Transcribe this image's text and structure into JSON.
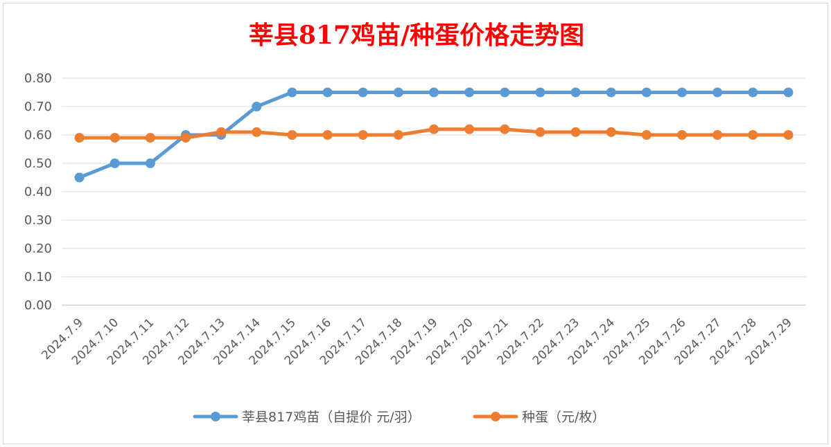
{
  "chart_data": {
    "type": "line",
    "title": "莘县817鸡苗/种蛋价格走势图",
    "title_color": "#ff0000",
    "categories": [
      "2024.7.9",
      "2024.7.10",
      "2024.7.11",
      "2024.7.12",
      "2024.7.13",
      "2024.7.14",
      "2024.7.15",
      "2024.7.16",
      "2024.7.17",
      "2024.7.18",
      "2024.7.19",
      "2024.7.20",
      "2024.7.21",
      "2024.7.22",
      "2024.7.23",
      "2024.7.24",
      "2024.7.25",
      "2024.7.26",
      "2024.7.27",
      "2024.7.28",
      "2024.7.29"
    ],
    "series": [
      {
        "name": "莘县817鸡苗（自提价 元/羽）",
        "color": "#5b9bd5",
        "values": [
          0.45,
          0.5,
          0.5,
          0.6,
          0.6,
          0.7,
          0.75,
          0.75,
          0.75,
          0.75,
          0.75,
          0.75,
          0.75,
          0.75,
          0.75,
          0.75,
          0.75,
          0.75,
          0.75,
          0.75,
          0.75
        ]
      },
      {
        "name": "种蛋（元/枚）",
        "color": "#ed7d31",
        "values": [
          0.59,
          0.59,
          0.59,
          0.59,
          0.61,
          0.61,
          0.6,
          0.6,
          0.6,
          0.6,
          0.62,
          0.62,
          0.62,
          0.61,
          0.61,
          0.61,
          0.6,
          0.6,
          0.6,
          0.6,
          0.6
        ]
      }
    ],
    "yticks": [
      "0.00",
      "0.10",
      "0.20",
      "0.30",
      "0.40",
      "0.50",
      "0.60",
      "0.70",
      "0.80"
    ],
    "ylim": [
      0,
      0.8
    ],
    "grid": true,
    "legend_position": "bottom",
    "xlabel": "",
    "ylabel": ""
  }
}
